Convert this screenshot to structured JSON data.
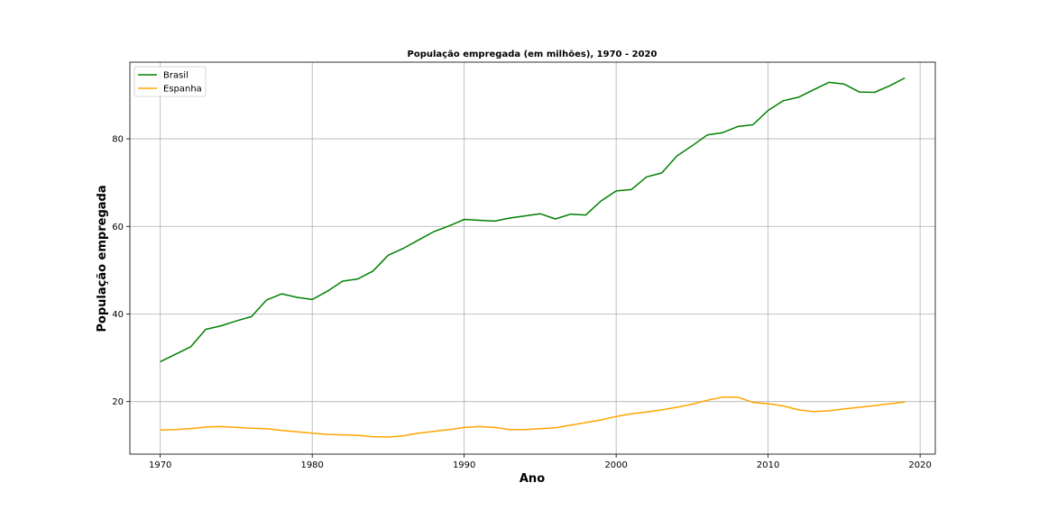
{
  "chart_data": {
    "type": "line",
    "title": "População empregada (em milhões), 1970 - 2020",
    "xlabel": "Ano",
    "ylabel": "População empregada",
    "xlim": [
      1968,
      2021
    ],
    "ylim": [
      8,
      97.5
    ],
    "x_ticks": [
      1970,
      1980,
      1990,
      2000,
      2010,
      2020
    ],
    "y_ticks": [
      20,
      40,
      60,
      80
    ],
    "grid": true,
    "legend_position": "top-left",
    "x": [
      1970,
      1971,
      1972,
      1973,
      1974,
      1975,
      1976,
      1977,
      1978,
      1979,
      1980,
      1981,
      1982,
      1983,
      1984,
      1985,
      1986,
      1987,
      1988,
      1989,
      1990,
      1991,
      1992,
      1993,
      1994,
      1995,
      1996,
      1997,
      1998,
      1999,
      2000,
      2001,
      2002,
      2003,
      2004,
      2005,
      2006,
      2007,
      2008,
      2009,
      2010,
      2011,
      2012,
      2013,
      2014,
      2015,
      2016,
      2017,
      2018,
      2019
    ],
    "series": [
      {
        "name": "Brasil",
        "color": "#008000",
        "values": [
          29.1,
          30.8,
          32.5,
          36.5,
          37.3,
          38.4,
          39.4,
          43.2,
          44.6,
          43.8,
          43.3,
          45.2,
          47.5,
          48.0,
          49.8,
          53.4,
          55.0,
          56.9,
          58.8,
          60.1,
          61.6,
          61.4,
          61.2,
          61.9,
          62.4,
          62.9,
          61.7,
          62.8,
          62.6,
          65.8,
          68.1,
          68.4,
          71.3,
          72.2,
          76.1,
          78.4,
          80.9,
          81.4,
          82.8,
          83.2,
          86.5,
          88.7,
          89.5,
          91.2,
          92.9,
          92.5,
          90.7,
          90.6,
          92.1,
          93.9
        ]
      },
      {
        "name": "Espanha",
        "color": "#ffa500",
        "values": [
          13.5,
          13.6,
          13.8,
          14.2,
          14.3,
          14.1,
          13.9,
          13.8,
          13.4,
          13.1,
          12.8,
          12.5,
          12.4,
          12.3,
          12.0,
          11.9,
          12.2,
          12.8,
          13.2,
          13.6,
          14.1,
          14.3,
          14.1,
          13.6,
          13.6,
          13.8,
          14.0,
          14.6,
          15.2,
          15.8,
          16.6,
          17.2,
          17.6,
          18.1,
          18.7,
          19.4,
          20.3,
          21.0,
          21.0,
          19.8,
          19.5,
          19.0,
          18.1,
          17.7,
          17.9,
          18.3,
          18.7,
          19.1,
          19.5,
          19.9
        ]
      }
    ]
  }
}
